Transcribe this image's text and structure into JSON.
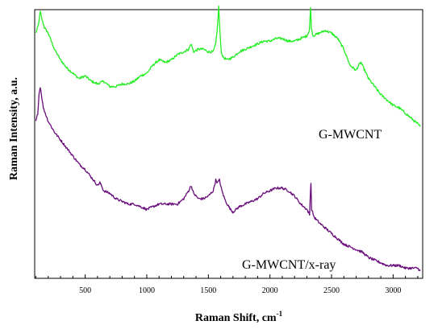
{
  "chart_data": {
    "type": "line",
    "xlabel": "Raman Shift, cm",
    "xlabel_superscript": "-1",
    "ylabel": "Raman Intensity, a.u.",
    "xlim": [
      90,
      3240
    ],
    "ylim": [
      0,
      100
    ],
    "y_ticks_labeled": false,
    "grid": false,
    "x_ticks": [
      500,
      1000,
      1500,
      2000,
      2500,
      3000
    ],
    "x_tick_labels": [
      "500",
      "1000",
      "1500",
      "2000",
      "2500",
      "3000"
    ],
    "annotations": [
      "G-MWCNT",
      "G-MWCNT/x-ray"
    ],
    "series": [
      {
        "name": "G-MWCNT",
        "color": "#22ee22",
        "points": [
          [
            100,
            90
          ],
          [
            120,
            93
          ],
          [
            135,
            98
          ],
          [
            150,
            95
          ],
          [
            170,
            92
          ],
          [
            200,
            90
          ],
          [
            250,
            84
          ],
          [
            300,
            80
          ],
          [
            350,
            77
          ],
          [
            400,
            75
          ],
          [
            450,
            73
          ],
          [
            500,
            74
          ],
          [
            550,
            72
          ],
          [
            600,
            71
          ],
          [
            650,
            72
          ],
          [
            700,
            70
          ],
          [
            750,
            70
          ],
          [
            800,
            71
          ],
          [
            850,
            71
          ],
          [
            900,
            72
          ],
          [
            950,
            74
          ],
          [
            1000,
            75
          ],
          [
            1050,
            78
          ],
          [
            1100,
            80
          ],
          [
            1150,
            79
          ],
          [
            1200,
            80
          ],
          [
            1250,
            82
          ],
          [
            1300,
            83
          ],
          [
            1340,
            84
          ],
          [
            1360,
            86
          ],
          [
            1380,
            83
          ],
          [
            1420,
            84
          ],
          [
            1460,
            84
          ],
          [
            1500,
            83
          ],
          [
            1540,
            83
          ],
          [
            1560,
            86
          ],
          [
            1575,
            93
          ],
          [
            1584,
            100
          ],
          [
            1592,
            92
          ],
          [
            1605,
            83
          ],
          [
            1620,
            81
          ],
          [
            1650,
            80
          ],
          [
            1700,
            81
          ],
          [
            1750,
            83
          ],
          [
            1800,
            84
          ],
          [
            1850,
            85
          ],
          [
            1900,
            86
          ],
          [
            1950,
            87
          ],
          [
            2000,
            87
          ],
          [
            2050,
            88
          ],
          [
            2100,
            88
          ],
          [
            2150,
            87
          ],
          [
            2200,
            87
          ],
          [
            2250,
            88
          ],
          [
            2300,
            89
          ],
          [
            2320,
            91
          ],
          [
            2325,
            95
          ],
          [
            2330,
            100
          ],
          [
            2336,
            92
          ],
          [
            2350,
            89
          ],
          [
            2400,
            90
          ],
          [
            2450,
            91
          ],
          [
            2500,
            90
          ],
          [
            2550,
            88
          ],
          [
            2600,
            84
          ],
          [
            2650,
            78
          ],
          [
            2700,
            76
          ],
          [
            2720,
            78
          ],
          [
            2740,
            79
          ],
          [
            2760,
            77
          ],
          [
            2800,
            73
          ],
          [
            2850,
            70
          ],
          [
            2900,
            67
          ],
          [
            2950,
            65
          ],
          [
            3000,
            63
          ],
          [
            3050,
            62
          ],
          [
            3100,
            60
          ],
          [
            3150,
            58
          ],
          [
            3200,
            56
          ],
          [
            3220,
            55
          ]
        ]
      },
      {
        "name": "G-MWCNT/x-ray",
        "color": "#6a0e7c",
        "points": [
          [
            100,
            57
          ],
          [
            115,
            60
          ],
          [
            125,
            67
          ],
          [
            135,
            70
          ],
          [
            145,
            67
          ],
          [
            160,
            62
          ],
          [
            200,
            57
          ],
          [
            250,
            53
          ],
          [
            300,
            50
          ],
          [
            350,
            47
          ],
          [
            400,
            44
          ],
          [
            450,
            41
          ],
          [
            500,
            39
          ],
          [
            550,
            36
          ],
          [
            600,
            33
          ],
          [
            620,
            34
          ],
          [
            650,
            31
          ],
          [
            700,
            30
          ],
          [
            750,
            28
          ],
          [
            800,
            27
          ],
          [
            850,
            26
          ],
          [
            900,
            26
          ],
          [
            950,
            25
          ],
          [
            1000,
            24
          ],
          [
            1050,
            25
          ],
          [
            1100,
            26
          ],
          [
            1150,
            26
          ],
          [
            1200,
            26
          ],
          [
            1250,
            26
          ],
          [
            1300,
            28
          ],
          [
            1340,
            31
          ],
          [
            1360,
            33
          ],
          [
            1380,
            30
          ],
          [
            1420,
            28
          ],
          [
            1460,
            28
          ],
          [
            1500,
            29
          ],
          [
            1540,
            31
          ],
          [
            1560,
            35
          ],
          [
            1575,
            34
          ],
          [
            1590,
            35
          ],
          [
            1610,
            31
          ],
          [
            1640,
            27
          ],
          [
            1680,
            24
          ],
          [
            1700,
            23
          ],
          [
            1750,
            25
          ],
          [
            1800,
            26
          ],
          [
            1850,
            27
          ],
          [
            1900,
            28
          ],
          [
            1950,
            30
          ],
          [
            2000,
            31
          ],
          [
            2050,
            32
          ],
          [
            2100,
            32
          ],
          [
            2150,
            31
          ],
          [
            2200,
            29
          ],
          [
            2250,
            26
          ],
          [
            2300,
            24
          ],
          [
            2322,
            22
          ],
          [
            2328,
            30
          ],
          [
            2333,
            34
          ],
          [
            2338,
            24
          ],
          [
            2360,
            21
          ],
          [
            2400,
            19
          ],
          [
            2450,
            17
          ],
          [
            2500,
            15
          ],
          [
            2550,
            13
          ],
          [
            2600,
            11
          ],
          [
            2650,
            10
          ],
          [
            2700,
            9
          ],
          [
            2750,
            8
          ],
          [
            2800,
            6
          ],
          [
            2850,
            5
          ],
          [
            2900,
            4
          ],
          [
            2950,
            3
          ],
          [
            3000,
            3
          ],
          [
            3050,
            3
          ],
          [
            3100,
            2
          ],
          [
            3150,
            2
          ],
          [
            3200,
            2
          ],
          [
            3220,
            1
          ]
        ]
      }
    ]
  }
}
